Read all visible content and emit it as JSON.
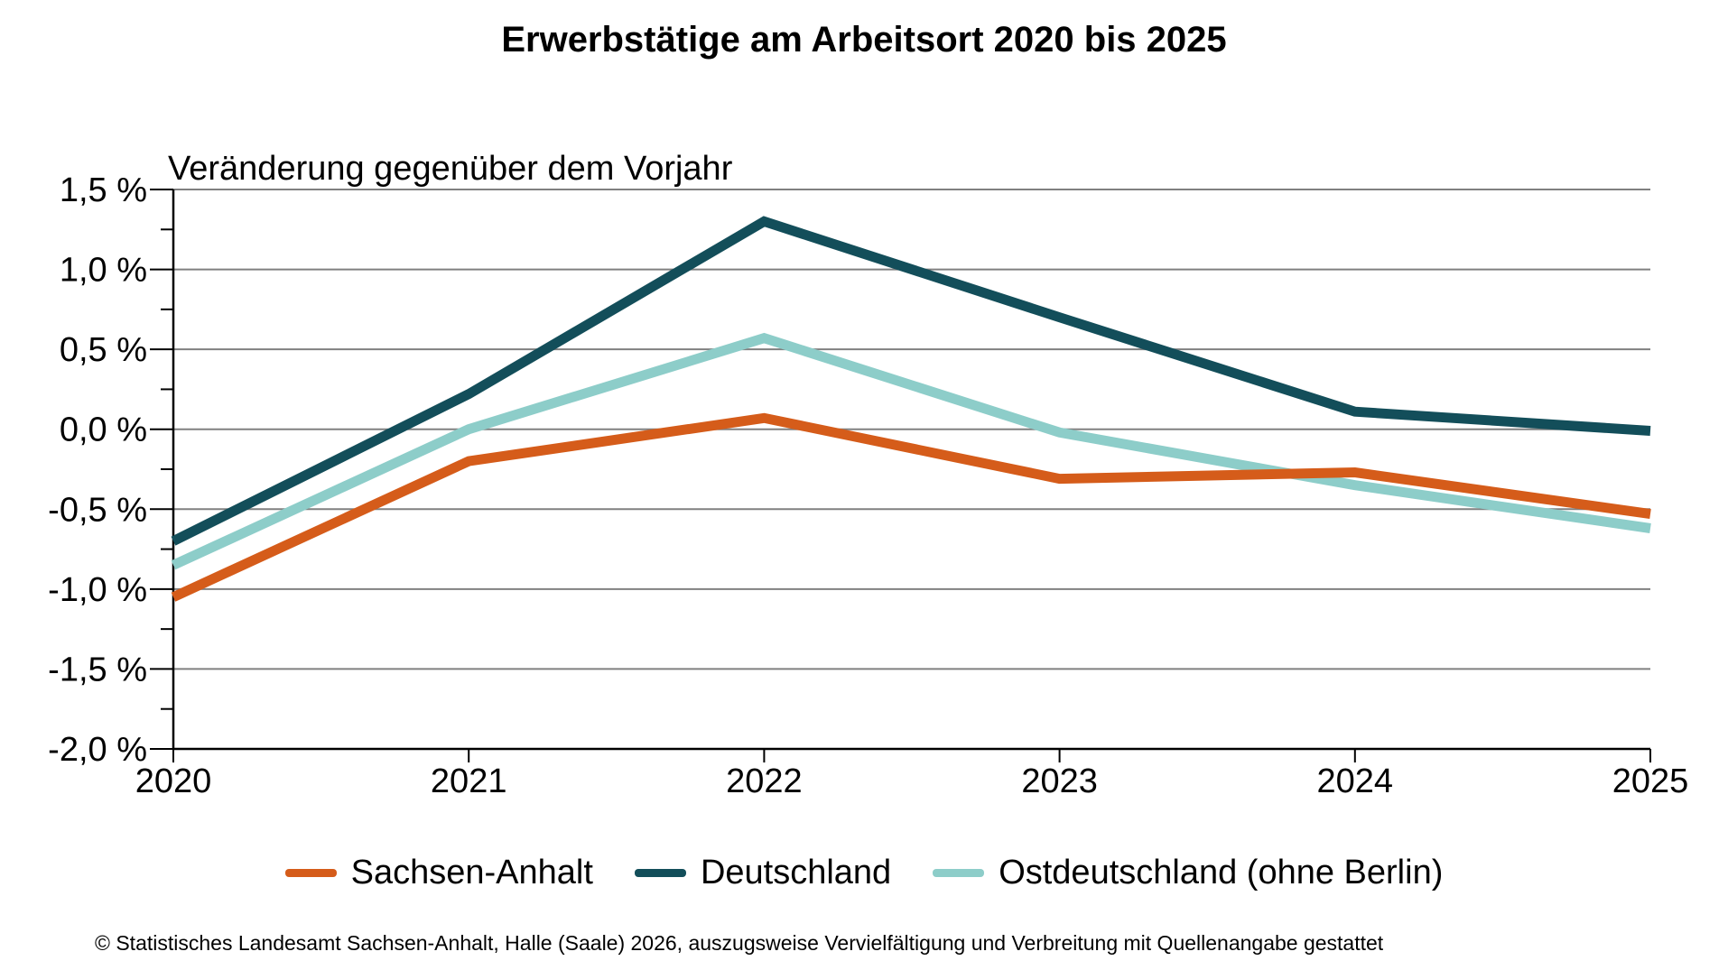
{
  "title": "Erwerbstätige am Arbeitsort 2020 bis 2025",
  "chart_data": {
    "type": "line",
    "title": "Erwerbstätige am Arbeitsort 2020 bis 2025",
    "subtitle": "Veränderung gegenüber dem Vorjahr",
    "categories": [
      "2020",
      "2021",
      "2022",
      "2023",
      "2024",
      "2025"
    ],
    "series": [
      {
        "name": "Sachsen-Anhalt",
        "color": "#D55C1A",
        "values": [
          -1.05,
          -0.2,
          0.07,
          -0.31,
          -0.27,
          -0.53
        ]
      },
      {
        "name": "Deutschland",
        "color": "#134E5A",
        "values": [
          -0.7,
          0.22,
          1.3,
          0.7,
          0.11,
          -0.01
        ]
      },
      {
        "name": "Ostdeutschland (ohne Berlin)",
        "color": "#8DCDC9",
        "values": [
          -0.85,
          0.0,
          0.57,
          -0.02,
          -0.35,
          -0.62
        ]
      }
    ],
    "ylim": [
      -2.0,
      1.5
    ],
    "y_tick_step": 0.5,
    "y_minor_tick_step": 0.25,
    "y_tick_labels": [
      "1,5 %",
      "1,0 %",
      "0,5 %",
      "0,0 %",
      "-0,5 %",
      "-1,0 %",
      "-1,5 %",
      "-2,0 %"
    ],
    "x_tick_labels": [
      "2020",
      "2021",
      "2022",
      "2023",
      "2024",
      "2025"
    ],
    "unit": "%",
    "grid": "horizontal",
    "grid_color": "#808080",
    "axis_color": "#000000",
    "legend_position": "bottom"
  },
  "footer": {
    "copyright": "© Statistisches Landesamt Sachsen-Anhalt, Halle (Saale) 2026, auszugsweise Vervielfältigung und Verbreitung mit Quellenangabe gestattet"
  }
}
